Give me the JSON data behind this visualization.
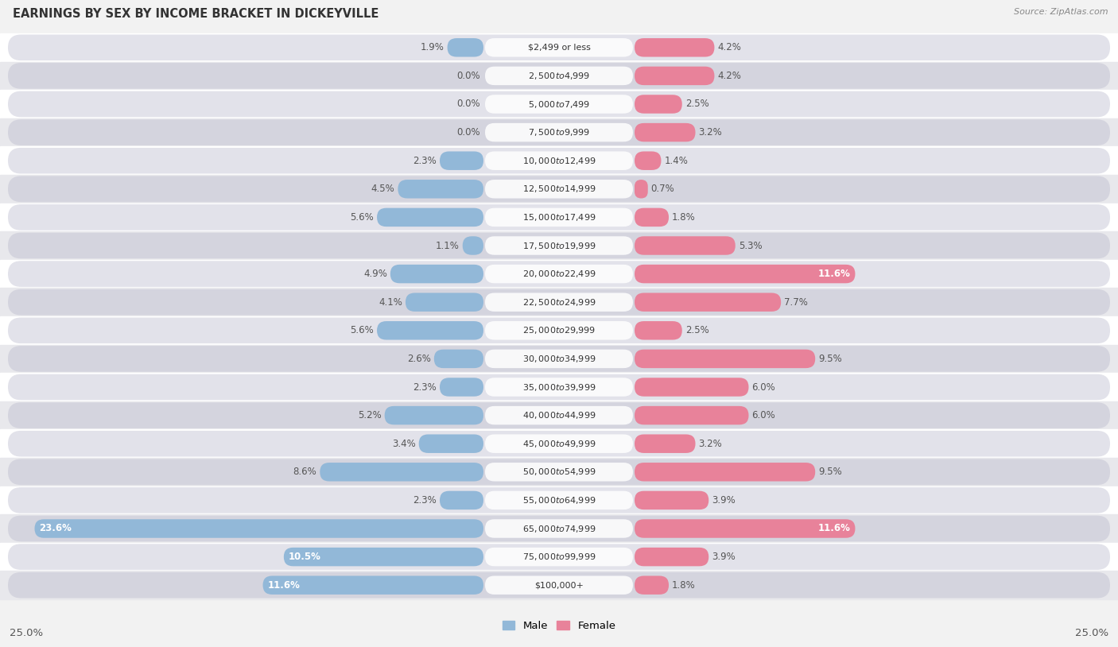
{
  "title": "EARNINGS BY SEX BY INCOME BRACKET IN DICKEYVILLE",
  "source": "Source: ZipAtlas.com",
  "categories": [
    "$2,499 or less",
    "$2,500 to $4,999",
    "$5,000 to $7,499",
    "$7,500 to $9,999",
    "$10,000 to $12,499",
    "$12,500 to $14,999",
    "$15,000 to $17,499",
    "$17,500 to $19,999",
    "$20,000 to $22,499",
    "$22,500 to $24,999",
    "$25,000 to $29,999",
    "$30,000 to $34,999",
    "$35,000 to $39,999",
    "$40,000 to $44,999",
    "$45,000 to $49,999",
    "$50,000 to $54,999",
    "$55,000 to $64,999",
    "$65,000 to $74,999",
    "$75,000 to $99,999",
    "$100,000+"
  ],
  "male": [
    1.9,
    0.0,
    0.0,
    0.0,
    2.3,
    4.5,
    5.6,
    1.1,
    4.9,
    4.1,
    5.6,
    2.6,
    2.3,
    5.2,
    3.4,
    8.6,
    2.3,
    23.6,
    10.5,
    11.6
  ],
  "female": [
    4.2,
    4.2,
    2.5,
    3.2,
    1.4,
    0.7,
    1.8,
    5.3,
    11.6,
    7.7,
    2.5,
    9.5,
    6.0,
    6.0,
    3.2,
    9.5,
    3.9,
    11.6,
    3.9,
    1.8
  ],
  "male_color": "#92b8d8",
  "female_color": "#e8829a",
  "male_label_color": "#555555",
  "female_label_color": "#555555",
  "bg_color": "#f2f2f2",
  "row_light": "#ffffff",
  "row_dark": "#e8e8ec",
  "pill_light": "#e8e8ee",
  "pill_dark": "#d8d8e0",
  "xlim": 25.0,
  "title_fontsize": 10.5,
  "label_fontsize": 8.5,
  "cat_fontsize": 8.0,
  "tick_fontsize": 9.5
}
